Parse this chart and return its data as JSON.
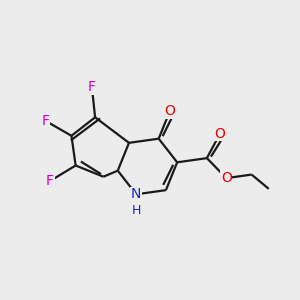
{
  "background_color": "#ececec",
  "bond_color": "#1a1a1a",
  "atom_colors": {
    "O": "#ee0000",
    "N": "#2222cc",
    "F": "#cc00cc",
    "C": "#1a1a1a"
  },
  "figsize": [
    3.0,
    3.0
  ],
  "dpi": 100,
  "bond_lw": 1.6,
  "font_size": 10,
  "double_sep": 0.012
}
